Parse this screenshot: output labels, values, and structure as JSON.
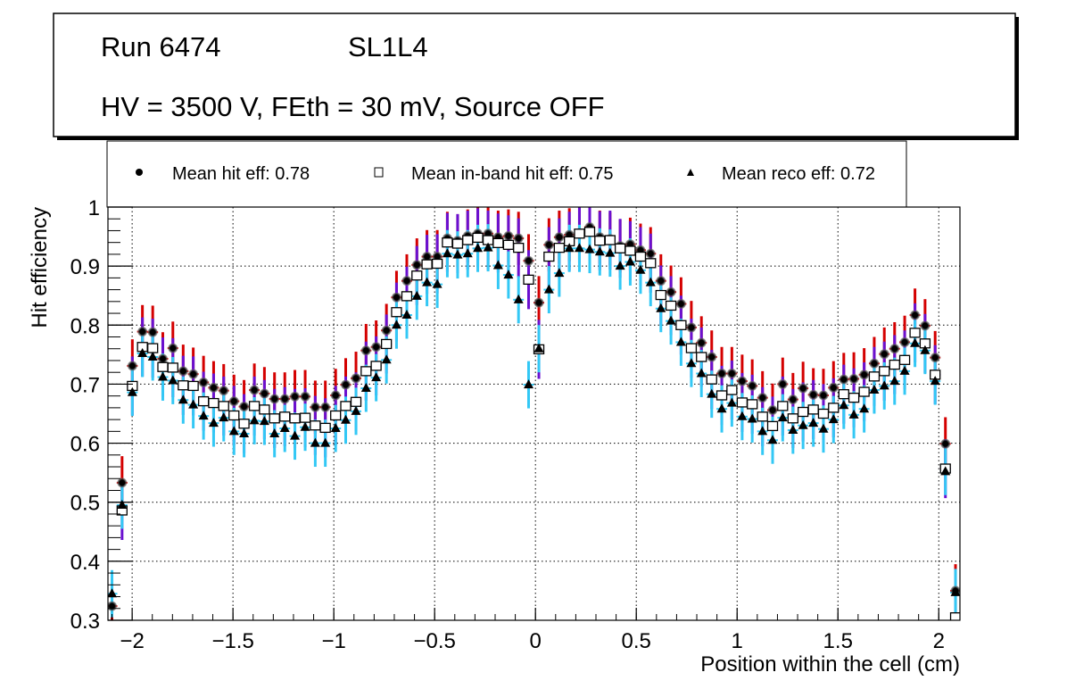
{
  "header": {
    "run": "Run 6474",
    "layer": "SL1L4",
    "conditions": "HV = 3500 V, FEth = 30 mV, Source OFF"
  },
  "legend": {
    "items": [
      {
        "label": "Mean hit  eff: 0.78",
        "marker": "circle"
      },
      {
        "label": "Mean in-band hit eff: 0.75",
        "marker": "open-square"
      },
      {
        "label": "Mean reco eff: 0.72",
        "marker": "triangle"
      }
    ]
  },
  "chart_data": {
    "type": "scatter",
    "title": "",
    "xlabel": "Position within the cell (cm)",
    "ylabel": "Hit efficiency",
    "xlim": [
      -2.12,
      2.105
    ],
    "ylim": [
      0.3,
      1.0
    ],
    "grid": true,
    "legend_position": "top",
    "xticks": [
      "-2",
      "-1.5",
      "-1",
      "-0.5",
      "0",
      "0.5",
      "1",
      "1.5",
      "2"
    ],
    "xtick_values": [
      -2,
      -1.5,
      -1,
      -0.5,
      0,
      0.5,
      1,
      1.5,
      2
    ],
    "yticks": [
      "0.3",
      "0.4",
      "0.5",
      "0.6",
      "0.7",
      "0.8",
      "0.9",
      "1"
    ],
    "ytick_values": [
      0.3,
      0.4,
      0.5,
      0.6,
      0.7,
      0.8,
      0.9,
      1.0
    ],
    "x": [
      -2.1,
      -2.05,
      -1.999,
      -1.949,
      -1.898,
      -1.848,
      -1.798,
      -1.747,
      -1.697,
      -1.646,
      -1.596,
      -1.546,
      -1.495,
      -1.445,
      -1.394,
      -1.344,
      -1.294,
      -1.243,
      -1.193,
      -1.142,
      -1.092,
      -1.042,
      -0.991,
      -0.941,
      -0.89,
      -0.84,
      -0.79,
      -0.739,
      -0.689,
      -0.638,
      -0.588,
      -0.538,
      -0.487,
      -0.437,
      -0.386,
      -0.336,
      -0.286,
      -0.235,
      -0.185,
      -0.134,
      -0.084,
      -0.034,
      0.017,
      0.067,
      0.118,
      0.168,
      0.218,
      0.269,
      0.319,
      0.37,
      0.42,
      0.47,
      0.521,
      0.571,
      0.622,
      0.672,
      0.722,
      0.773,
      0.823,
      0.874,
      0.924,
      0.974,
      1.025,
      1.075,
      1.126,
      1.176,
      1.226,
      1.277,
      1.327,
      1.378,
      1.428,
      1.478,
      1.529,
      1.579,
      1.63,
      1.68,
      1.73,
      1.781,
      1.831,
      1.882,
      1.932,
      1.982,
      2.033,
      2.083
    ],
    "series": [
      {
        "name": "Mean hit  eff: 0.78",
        "marker": "circle",
        "error_color": "#d40000",
        "error": 0.045,
        "values": [
          0.324,
          0.533,
          0.731,
          0.789,
          0.788,
          0.743,
          0.761,
          0.722,
          0.717,
          0.703,
          0.694,
          0.689,
          0.671,
          0.662,
          0.69,
          0.684,
          0.675,
          0.675,
          0.679,
          0.679,
          0.661,
          0.661,
          0.681,
          0.699,
          0.71,
          0.757,
          0.763,
          0.791,
          0.847,
          0.875,
          0.902,
          0.916,
          0.916,
          0.947,
          0.943,
          0.951,
          0.955,
          0.955,
          0.949,
          0.951,
          0.947,
          0.909,
          0.838,
          0.936,
          0.949,
          0.953,
          0.956,
          0.966,
          0.949,
          0.946,
          0.934,
          0.937,
          0.927,
          0.921,
          0.875,
          0.856,
          0.836,
          0.796,
          0.77,
          0.746,
          0.718,
          0.718,
          0.705,
          0.697,
          0.677,
          0.656,
          0.7,
          0.674,
          0.693,
          0.682,
          0.681,
          0.694,
          0.708,
          0.709,
          0.716,
          0.735,
          0.751,
          0.76,
          0.771,
          0.817,
          0.799,
          0.745,
          0.599,
          0.35
        ]
      },
      {
        "name": "Mean in-band hit eff: 0.75",
        "marker": "open-square",
        "error_color": "#6a10d0",
        "error": 0.05,
        "values": [
          null,
          0.486,
          0.697,
          0.763,
          0.761,
          0.729,
          0.728,
          0.698,
          0.697,
          0.671,
          0.668,
          0.663,
          0.647,
          0.633,
          0.663,
          0.657,
          0.642,
          0.645,
          0.642,
          0.643,
          0.63,
          0.626,
          0.647,
          0.663,
          0.67,
          0.722,
          0.731,
          0.768,
          0.822,
          0.849,
          0.884,
          0.903,
          0.904,
          0.94,
          0.938,
          0.944,
          0.948,
          0.944,
          0.939,
          0.936,
          0.931,
          0.877,
          0.759,
          0.916,
          0.931,
          0.942,
          0.955,
          0.958,
          0.943,
          0.944,
          0.93,
          0.926,
          0.916,
          0.905,
          0.851,
          0.833,
          0.8,
          0.761,
          0.746,
          0.708,
          0.681,
          0.69,
          0.669,
          0.666,
          0.645,
          0.629,
          0.663,
          0.642,
          0.653,
          0.657,
          0.65,
          0.66,
          0.683,
          0.677,
          0.687,
          0.713,
          0.722,
          0.733,
          0.741,
          0.787,
          0.769,
          0.716,
          0.557,
          0.305
        ]
      },
      {
        "name": "Mean reco eff: 0.72",
        "marker": "triangle",
        "error_color": "#33c8f5",
        "error": 0.04,
        "values": [
          0.345,
          0.495,
          0.686,
          0.752,
          0.746,
          0.712,
          0.706,
          0.673,
          0.665,
          0.646,
          0.634,
          0.643,
          0.62,
          0.616,
          0.638,
          0.637,
          0.616,
          0.625,
          0.612,
          0.627,
          0.6,
          0.6,
          0.625,
          0.639,
          0.654,
          0.693,
          0.711,
          0.741,
          0.8,
          0.817,
          0.849,
          0.872,
          0.869,
          0.921,
          0.919,
          0.921,
          0.93,
          0.931,
          0.901,
          0.885,
          0.843,
          0.699,
          0.76,
          0.86,
          0.888,
          0.93,
          0.93,
          0.928,
          0.924,
          0.922,
          0.9,
          0.907,
          0.893,
          0.872,
          0.828,
          0.807,
          0.771,
          0.735,
          0.718,
          0.683,
          0.658,
          0.668,
          0.645,
          0.641,
          0.62,
          0.605,
          0.643,
          0.622,
          0.63,
          0.634,
          0.624,
          0.64,
          0.664,
          0.648,
          0.658,
          0.69,
          0.697,
          0.705,
          0.722,
          0.769,
          0.757,
          0.705,
          0.552,
          0.347
        ]
      }
    ]
  }
}
